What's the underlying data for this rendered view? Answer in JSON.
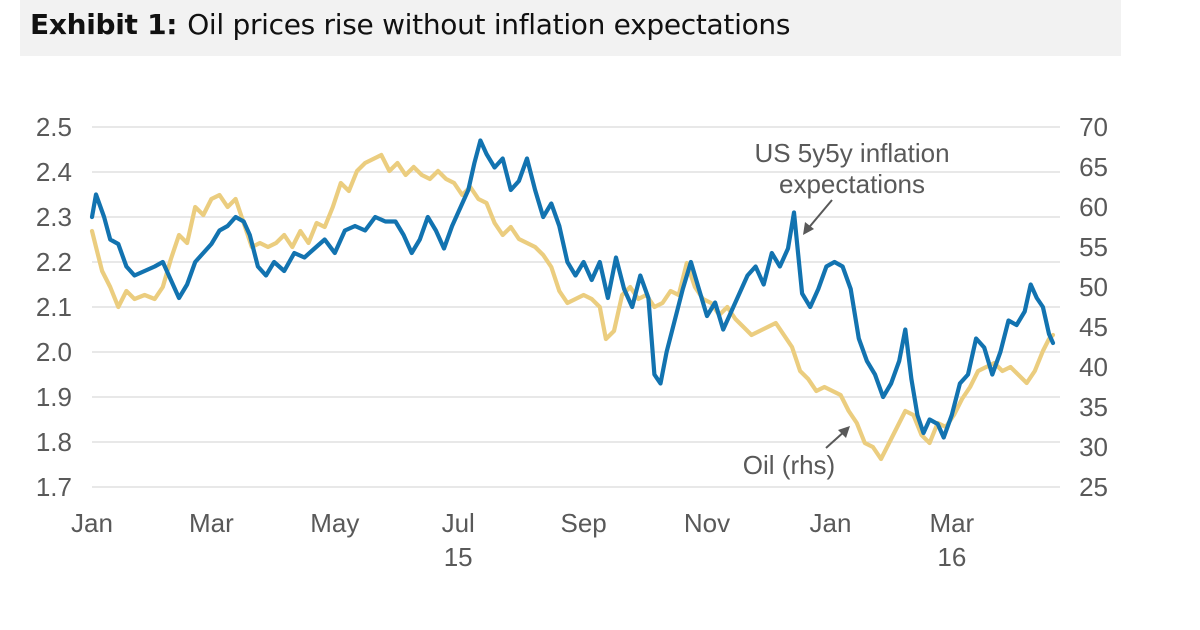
{
  "header": {
    "lead": "Exhibit 1:",
    "text": "Oil prices rise without inflation expectations"
  },
  "chart_data": {
    "type": "line",
    "title": "Exhibit 1: Oil prices rise without inflation expectations",
    "x_tick_labels": [
      {
        "label": "Jan",
        "sub": ""
      },
      {
        "label": "Mar",
        "sub": ""
      },
      {
        "label": "May",
        "sub": ""
      },
      {
        "label": "Jul",
        "sub": "15"
      },
      {
        "label": "Sep",
        "sub": ""
      },
      {
        "label": "Nov",
        "sub": ""
      },
      {
        "label": "Jan",
        "sub": ""
      },
      {
        "label": "Mar",
        "sub": "16"
      }
    ],
    "x_tick_dates": [
      "2015-01-01",
      "2015-03-01",
      "2015-05-01",
      "2015-07-01",
      "2015-09-01",
      "2015-11-01",
      "2016-01-01",
      "2016-03-01"
    ],
    "x_range": [
      "2015-01-01",
      "2016-04-20"
    ],
    "y_left": {
      "min": 1.7,
      "max": 2.5,
      "ticks": [
        "1.7",
        "1.8",
        "1.9",
        "2.0",
        "2.1",
        "2.2",
        "2.3",
        "2.4",
        "2.5"
      ]
    },
    "y_right": {
      "min": 25,
      "max": 70,
      "ticks": [
        "25",
        "30",
        "35",
        "40",
        "45",
        "50",
        "55",
        "60",
        "65",
        "70"
      ]
    },
    "grid": true,
    "series": [
      {
        "name": "US 5y5y inflation expectations",
        "axis": "left",
        "color": "#1273b0",
        "points": [
          [
            "2015-01-01",
            2.3
          ],
          [
            "2015-01-03",
            2.35
          ],
          [
            "2015-01-07",
            2.3
          ],
          [
            "2015-01-10",
            2.25
          ],
          [
            "2015-01-14",
            2.24
          ],
          [
            "2015-01-18",
            2.19
          ],
          [
            "2015-01-22",
            2.17
          ],
          [
            "2015-01-27",
            2.18
          ],
          [
            "2015-02-01",
            2.19
          ],
          [
            "2015-02-05",
            2.2
          ],
          [
            "2015-02-09",
            2.16
          ],
          [
            "2015-02-13",
            2.12
          ],
          [
            "2015-02-17",
            2.15
          ],
          [
            "2015-02-21",
            2.2
          ],
          [
            "2015-02-25",
            2.22
          ],
          [
            "2015-03-01",
            2.24
          ],
          [
            "2015-03-05",
            2.27
          ],
          [
            "2015-03-09",
            2.28
          ],
          [
            "2015-03-13",
            2.3
          ],
          [
            "2015-03-17",
            2.29
          ],
          [
            "2015-03-20",
            2.26
          ],
          [
            "2015-03-24",
            2.19
          ],
          [
            "2015-03-28",
            2.17
          ],
          [
            "2015-04-01",
            2.2
          ],
          [
            "2015-04-06",
            2.18
          ],
          [
            "2015-04-11",
            2.22
          ],
          [
            "2015-04-16",
            2.21
          ],
          [
            "2015-04-21",
            2.23
          ],
          [
            "2015-04-26",
            2.25
          ],
          [
            "2015-05-01",
            2.22
          ],
          [
            "2015-05-06",
            2.27
          ],
          [
            "2015-05-11",
            2.28
          ],
          [
            "2015-05-16",
            2.27
          ],
          [
            "2015-05-21",
            2.3
          ],
          [
            "2015-05-26",
            2.29
          ],
          [
            "2015-05-31",
            2.29
          ],
          [
            "2015-06-04",
            2.26
          ],
          [
            "2015-06-08",
            2.22
          ],
          [
            "2015-06-12",
            2.25
          ],
          [
            "2015-06-16",
            2.3
          ],
          [
            "2015-06-20",
            2.27
          ],
          [
            "2015-06-24",
            2.23
          ],
          [
            "2015-06-28",
            2.28
          ],
          [
            "2015-07-02",
            2.32
          ],
          [
            "2015-07-06",
            2.36
          ],
          [
            "2015-07-09",
            2.42
          ],
          [
            "2015-07-12",
            2.47
          ],
          [
            "2015-07-15",
            2.44
          ],
          [
            "2015-07-19",
            2.41
          ],
          [
            "2015-07-23",
            2.43
          ],
          [
            "2015-07-27",
            2.36
          ],
          [
            "2015-07-31",
            2.38
          ],
          [
            "2015-08-04",
            2.43
          ],
          [
            "2015-08-08",
            2.36
          ],
          [
            "2015-08-12",
            2.3
          ],
          [
            "2015-08-16",
            2.33
          ],
          [
            "2015-08-20",
            2.28
          ],
          [
            "2015-08-24",
            2.2
          ],
          [
            "2015-08-28",
            2.17
          ],
          [
            "2015-09-01",
            2.2
          ],
          [
            "2015-09-05",
            2.16
          ],
          [
            "2015-09-09",
            2.2
          ],
          [
            "2015-09-13",
            2.12
          ],
          [
            "2015-09-17",
            2.21
          ],
          [
            "2015-09-21",
            2.14
          ],
          [
            "2015-09-25",
            2.1
          ],
          [
            "2015-09-29",
            2.17
          ],
          [
            "2015-10-03",
            2.12
          ],
          [
            "2015-10-06",
            1.95
          ],
          [
            "2015-10-09",
            1.93
          ],
          [
            "2015-10-12",
            2.0
          ],
          [
            "2015-10-16",
            2.07
          ],
          [
            "2015-10-20",
            2.14
          ],
          [
            "2015-10-24",
            2.2
          ],
          [
            "2015-10-28",
            2.14
          ],
          [
            "2015-11-01",
            2.08
          ],
          [
            "2015-11-05",
            2.11
          ],
          [
            "2015-11-09",
            2.05
          ],
          [
            "2015-11-13",
            2.09
          ],
          [
            "2015-11-17",
            2.13
          ],
          [
            "2015-11-21",
            2.17
          ],
          [
            "2015-11-25",
            2.19
          ],
          [
            "2015-11-29",
            2.15
          ],
          [
            "2015-12-03",
            2.22
          ],
          [
            "2015-12-07",
            2.19
          ],
          [
            "2015-12-11",
            2.23
          ],
          [
            "2015-12-14",
            2.31
          ],
          [
            "2015-12-18",
            2.13
          ],
          [
            "2015-12-22",
            2.1
          ],
          [
            "2015-12-26",
            2.14
          ],
          [
            "2015-12-30",
            2.19
          ],
          [
            "2016-01-03",
            2.2
          ],
          [
            "2016-01-07",
            2.19
          ],
          [
            "2016-01-11",
            2.14
          ],
          [
            "2016-01-15",
            2.03
          ],
          [
            "2016-01-19",
            1.98
          ],
          [
            "2016-01-23",
            1.95
          ],
          [
            "2016-01-27",
            1.9
          ],
          [
            "2016-01-31",
            1.93
          ],
          [
            "2016-02-04",
            1.98
          ],
          [
            "2016-02-07",
            2.05
          ],
          [
            "2016-02-10",
            1.94
          ],
          [
            "2016-02-13",
            1.86
          ],
          [
            "2016-02-16",
            1.82
          ],
          [
            "2016-02-19",
            1.85
          ],
          [
            "2016-02-23",
            1.84
          ],
          [
            "2016-02-26",
            1.81
          ],
          [
            "2016-03-01",
            1.86
          ],
          [
            "2016-03-05",
            1.93
          ],
          [
            "2016-03-09",
            1.95
          ],
          [
            "2016-03-13",
            2.03
          ],
          [
            "2016-03-17",
            2.01
          ],
          [
            "2016-03-21",
            1.95
          ],
          [
            "2016-03-25",
            2.0
          ],
          [
            "2016-03-29",
            2.07
          ],
          [
            "2016-04-02",
            2.06
          ],
          [
            "2016-04-06",
            2.09
          ],
          [
            "2016-04-09",
            2.15
          ],
          [
            "2016-04-12",
            2.12
          ],
          [
            "2016-04-15",
            2.1
          ],
          [
            "2016-04-18",
            2.04
          ],
          [
            "2016-04-20",
            2.02
          ]
        ]
      },
      {
        "name": "Oil (rhs)",
        "axis": "right",
        "color": "#ebcd7f",
        "points": [
          [
            "2015-01-01",
            57.0
          ],
          [
            "2015-01-03",
            55.0
          ],
          [
            "2015-01-06",
            52.0
          ],
          [
            "2015-01-10",
            50.0
          ],
          [
            "2015-01-14",
            47.5
          ],
          [
            "2015-01-18",
            49.5
          ],
          [
            "2015-01-22",
            48.5
          ],
          [
            "2015-01-27",
            49.0
          ],
          [
            "2015-02-01",
            48.5
          ],
          [
            "2015-02-05",
            50.0
          ],
          [
            "2015-02-09",
            53.5
          ],
          [
            "2015-02-13",
            56.5
          ],
          [
            "2015-02-17",
            55.5
          ],
          [
            "2015-02-21",
            60.0
          ],
          [
            "2015-02-25",
            59.0
          ],
          [
            "2015-03-01",
            61.0
          ],
          [
            "2015-03-05",
            61.5
          ],
          [
            "2015-03-09",
            60.0
          ],
          [
            "2015-03-13",
            61.0
          ],
          [
            "2015-03-17",
            58.0
          ],
          [
            "2015-03-21",
            55.0
          ],
          [
            "2015-03-25",
            55.5
          ],
          [
            "2015-03-29",
            55.0
          ],
          [
            "2015-04-02",
            55.5
          ],
          [
            "2015-04-06",
            56.5
          ],
          [
            "2015-04-10",
            55.0
          ],
          [
            "2015-04-14",
            57.0
          ],
          [
            "2015-04-18",
            55.5
          ],
          [
            "2015-04-22",
            58.0
          ],
          [
            "2015-04-26",
            57.5
          ],
          [
            "2015-04-30",
            60.0
          ],
          [
            "2015-05-04",
            63.0
          ],
          [
            "2015-05-08",
            62.0
          ],
          [
            "2015-05-12",
            64.5
          ],
          [
            "2015-05-16",
            65.5
          ],
          [
            "2015-05-20",
            66.0
          ],
          [
            "2015-05-24",
            66.5
          ],
          [
            "2015-05-28",
            64.5
          ],
          [
            "2015-06-01",
            65.5
          ],
          [
            "2015-06-05",
            64.0
          ],
          [
            "2015-06-09",
            65.0
          ],
          [
            "2015-06-13",
            64.0
          ],
          [
            "2015-06-17",
            63.5
          ],
          [
            "2015-06-21",
            64.5
          ],
          [
            "2015-06-25",
            63.5
          ],
          [
            "2015-06-29",
            63.0
          ],
          [
            "2015-07-03",
            61.5
          ],
          [
            "2015-07-07",
            62.5
          ],
          [
            "2015-07-11",
            61.0
          ],
          [
            "2015-07-15",
            60.5
          ],
          [
            "2015-07-19",
            58.0
          ],
          [
            "2015-07-23",
            56.5
          ],
          [
            "2015-07-27",
            57.5
          ],
          [
            "2015-07-31",
            56.0
          ],
          [
            "2015-08-04",
            55.5
          ],
          [
            "2015-08-08",
            55.0
          ],
          [
            "2015-08-12",
            54.0
          ],
          [
            "2015-08-16",
            52.5
          ],
          [
            "2015-08-20",
            49.5
          ],
          [
            "2015-08-24",
            48.0
          ],
          [
            "2015-08-28",
            48.5
          ],
          [
            "2015-09-01",
            49.0
          ],
          [
            "2015-09-05",
            48.5
          ],
          [
            "2015-09-09",
            47.5
          ],
          [
            "2015-09-12",
            43.5
          ],
          [
            "2015-09-16",
            44.5
          ],
          [
            "2015-09-20",
            49.0
          ],
          [
            "2015-09-24",
            50.0
          ],
          [
            "2015-09-28",
            48.5
          ],
          [
            "2015-10-02",
            49.0
          ],
          [
            "2015-10-06",
            47.5
          ],
          [
            "2015-10-10",
            48.0
          ],
          [
            "2015-10-14",
            49.5
          ],
          [
            "2015-10-18",
            49.0
          ],
          [
            "2015-10-22",
            53.0
          ],
          [
            "2015-10-26",
            50.0
          ],
          [
            "2015-10-30",
            48.5
          ],
          [
            "2015-11-03",
            48.0
          ],
          [
            "2015-11-07",
            46.5
          ],
          [
            "2015-11-11",
            47.5
          ],
          [
            "2015-11-15",
            46.0
          ],
          [
            "2015-11-19",
            45.0
          ],
          [
            "2015-11-23",
            44.0
          ],
          [
            "2015-11-27",
            44.5
          ],
          [
            "2015-12-01",
            45.0
          ],
          [
            "2015-12-05",
            45.5
          ],
          [
            "2015-12-09",
            44.0
          ],
          [
            "2015-12-13",
            42.5
          ],
          [
            "2015-12-17",
            39.5
          ],
          [
            "2015-12-21",
            38.5
          ],
          [
            "2015-12-25",
            37.0
          ],
          [
            "2015-12-29",
            37.5
          ],
          [
            "2016-01-02",
            37.0
          ],
          [
            "2016-01-06",
            36.5
          ],
          [
            "2016-01-10",
            34.5
          ],
          [
            "2016-01-14",
            33.0
          ],
          [
            "2016-01-18",
            30.5
          ],
          [
            "2016-01-22",
            30.0
          ],
          [
            "2016-01-26",
            28.5
          ],
          [
            "2016-01-30",
            30.5
          ],
          [
            "2016-02-03",
            32.5
          ],
          [
            "2016-02-07",
            34.5
          ],
          [
            "2016-02-11",
            34.0
          ],
          [
            "2016-02-15",
            31.5
          ],
          [
            "2016-02-19",
            30.5
          ],
          [
            "2016-02-23",
            33.0
          ],
          [
            "2016-02-27",
            32.5
          ],
          [
            "2016-03-02",
            34.0
          ],
          [
            "2016-03-06",
            36.0
          ],
          [
            "2016-03-10",
            37.5
          ],
          [
            "2016-03-14",
            39.5
          ],
          [
            "2016-03-18",
            40.0
          ],
          [
            "2016-03-22",
            40.5
          ],
          [
            "2016-03-26",
            39.5
          ],
          [
            "2016-03-30",
            40.0
          ],
          [
            "2016-04-03",
            39.0
          ],
          [
            "2016-04-07",
            38.0
          ],
          [
            "2016-04-11",
            39.5
          ],
          [
            "2016-04-15",
            42.0
          ],
          [
            "2016-04-18",
            43.5
          ],
          [
            "2016-04-20",
            44.0
          ]
        ]
      }
    ],
    "annotations": [
      {
        "lines": [
          "US 5y5y inflation",
          "expectations"
        ]
      },
      {
        "lines": [
          "Oil (rhs)"
        ]
      }
    ]
  }
}
